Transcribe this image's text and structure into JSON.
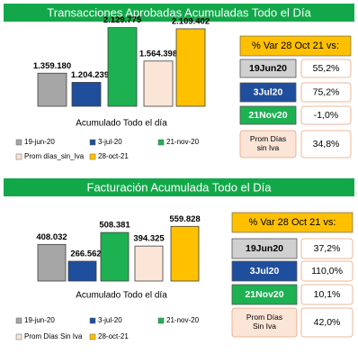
{
  "chart_data": [
    {
      "type": "bar",
      "title": "Transacciones Aprobadas Acumuladas Todo el Día",
      "x_label": "Acumulado Todo el día",
      "categories": [
        "19-jun-20",
        "3-jul-20",
        "21-nov-20",
        "Prom días_sin_Iva",
        "28-oct-21"
      ],
      "values": [
        1359180,
        1204239,
        2129775,
        1564398,
        2109402
      ],
      "value_labels": [
        "1.359.180",
        "1.204.239",
        "2.129.775",
        "1.564.398",
        "2.109.402"
      ],
      "colors": [
        "#a6a6a6",
        "#1f4e9c",
        "#1db152",
        "#fbe5d6",
        "#ffc000"
      ],
      "ylim": [
        800000,
        2200000
      ]
    },
    {
      "type": "bar",
      "title": "Facturación Acumulada Todo el Día",
      "x_label": "Acumulado Todo el día",
      "categories": [
        "19-jun-20",
        "3-jul-20",
        "21-nov-20",
        "Prom Días Sin Iva",
        "28-oct-21"
      ],
      "values": [
        408032,
        266562,
        508381,
        394325,
        559828
      ],
      "value_labels": [
        "408.032",
        "266.562",
        "508.381",
        "394.325",
        "559.828"
      ],
      "colors": [
        "#a6a6a6",
        "#1f4e9c",
        "#1db152",
        "#fbe5d6",
        "#ffc000"
      ],
      "ylim": [
        100000,
        600000
      ]
    }
  ],
  "comparison_tables": [
    {
      "header": "% Var 28 Oct 21 vs:",
      "rows": [
        [
          "19Jun20",
          "55,2%"
        ],
        [
          "3Jul20",
          "75,2%"
        ],
        [
          "21Nov20",
          "-1,0%"
        ],
        [
          "Prom Días sin Iva",
          "34,8%"
        ]
      ]
    },
    {
      "header": "% Var 28 Oct 21 vs:",
      "rows": [
        [
          "19Jun20",
          "37,2%"
        ],
        [
          "3Jul20",
          "110,0%"
        ],
        [
          "21Nov20",
          "10,1%"
        ],
        [
          "Prom Días Sin Iva",
          "42,0%"
        ]
      ]
    }
  ]
}
